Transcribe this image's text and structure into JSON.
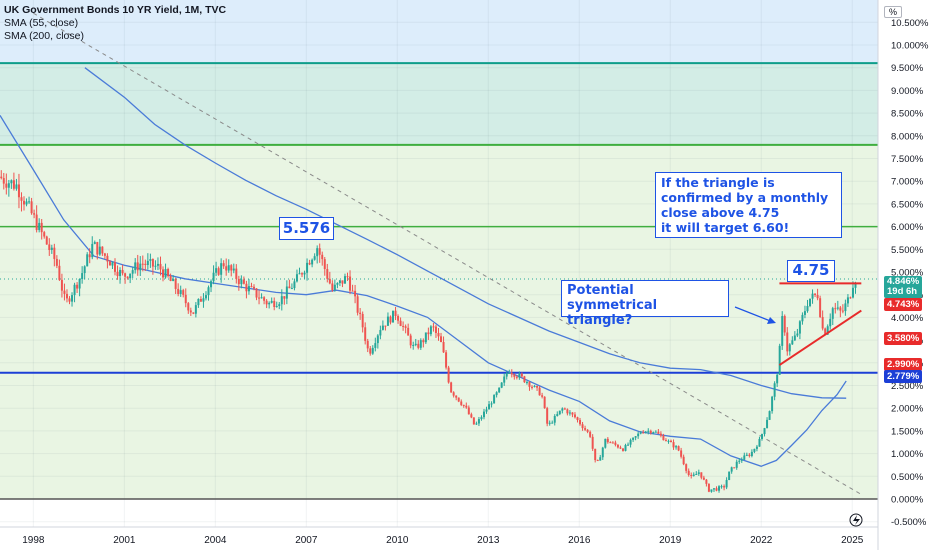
{
  "header": {
    "title": "UK Government Bonds 10 YR Yield, 1M, TVC",
    "indicators": [
      "SMA (55, close)",
      "SMA (200, close)"
    ]
  },
  "axis": {
    "unit": "%"
  },
  "annotations": {
    "peak_label": "5.576",
    "resistance_label": "4.75",
    "triangle_note": "Potential symmetrical triangle?",
    "target_note_lines": [
      "If the triangle is",
      "confirmed by a monthly",
      "close above 4.75",
      "it will target 6.60!"
    ]
  },
  "price_labels": {
    "last_price": "4.846%",
    "countdown": "19d 6h",
    "level_4743": "4.743%",
    "level_3580": "3.580%",
    "level_2990": "2.990%",
    "level_2779": "2.779%"
  },
  "colors": {
    "candle_up": "#26a69a",
    "candle_down": "#ef5350",
    "sma": "#4a7bd8",
    "resistance": "#e82b2b",
    "support": "#1c3fd6",
    "band_line": "#3fae3f",
    "top_band": "#0e9d8a"
  },
  "chart_data": {
    "type": "candlestick",
    "title": "UK Government Bonds 10 YR Yield, 1M, TVC",
    "x_ticks": [
      "1998",
      "2001",
      "2004",
      "2007",
      "2010",
      "2013",
      "2016",
      "2019",
      "2022",
      "2025"
    ],
    "y_ticks": [
      "10.500%",
      "10.000%",
      "9.500%",
      "9.000%",
      "8.500%",
      "8.000%",
      "7.500%",
      "7.000%",
      "6.500%",
      "6.000%",
      "5.500%",
      "5.000%",
      "4.500%",
      "4.000%",
      "3.500%",
      "3.000%",
      "2.500%",
      "2.000%",
      "1.500%",
      "1.000%",
      "0.500%",
      "0.000%",
      "-0.500%"
    ],
    "ylim": [
      -0.5,
      10.8
    ],
    "horizontal_levels": [
      9.6,
      7.8,
      6.0,
      2.78,
      0.0
    ],
    "trendline_resistance": {
      "from": [
        2022.6,
        4.75
      ],
      "to": [
        2025.3,
        4.75
      ]
    },
    "trendline_support": {
      "from": [
        2022.6,
        2.95
      ],
      "to": [
        2025.3,
        4.15
      ]
    },
    "dashed_trendline": {
      "from": [
        1998.0,
        10.7
      ],
      "to": [
        2025.3,
        0.1
      ]
    },
    "sma55": [
      [
        1996.9,
        8.45
      ],
      [
        1998,
        7.25
      ],
      [
        1999,
        6.15
      ],
      [
        2000,
        5.35
      ],
      [
        2001,
        5.15
      ],
      [
        2002,
        5.0
      ],
      [
        2003,
        4.85
      ],
      [
        2004,
        4.75
      ],
      [
        2005,
        4.65
      ],
      [
        2006,
        4.55
      ],
      [
        2007,
        4.5
      ],
      [
        2008,
        4.6
      ],
      [
        2009,
        4.48
      ],
      [
        2010,
        4.25
      ],
      [
        2011,
        4.0
      ],
      [
        2012,
        3.5
      ],
      [
        2013,
        3.0
      ],
      [
        2014,
        2.7
      ],
      [
        2015,
        2.4
      ],
      [
        2016,
        2.15
      ],
      [
        2017,
        1.72
      ],
      [
        2018,
        1.48
      ],
      [
        2019,
        1.38
      ],
      [
        2020,
        1.32
      ],
      [
        2021,
        0.95
      ],
      [
        2022,
        0.72
      ],
      [
        2022.5,
        0.85
      ],
      [
        2023,
        1.18
      ],
      [
        2023.5,
        1.52
      ],
      [
        2024,
        1.95
      ],
      [
        2024.5,
        2.3
      ],
      [
        2024.8,
        2.6
      ]
    ],
    "sma200": [
      [
        1999.7,
        9.5
      ],
      [
        2001,
        8.85
      ],
      [
        2002,
        8.25
      ],
      [
        2003,
        7.8
      ],
      [
        2004,
        7.4
      ],
      [
        2005,
        7.02
      ],
      [
        2006,
        6.68
      ],
      [
        2007,
        6.38
      ],
      [
        2008,
        6.05
      ],
      [
        2009,
        5.72
      ],
      [
        2010,
        5.38
      ],
      [
        2011,
        5.02
      ],
      [
        2012,
        4.66
      ],
      [
        2013,
        4.3
      ],
      [
        2014,
        4.0
      ],
      [
        2015,
        3.7
      ],
      [
        2016,
        3.45
      ],
      [
        2017,
        3.2
      ],
      [
        2018,
        3.0
      ],
      [
        2019,
        2.88
      ],
      [
        2020,
        2.85
      ],
      [
        2021,
        2.72
      ],
      [
        2022,
        2.5
      ],
      [
        2023,
        2.32
      ],
      [
        2024,
        2.23
      ],
      [
        2024.8,
        2.22
      ]
    ],
    "price_anchors": [
      [
        1996.9,
        7.1
      ],
      [
        1997.5,
        6.9
      ],
      [
        1998.2,
        6.0
      ],
      [
        1998.8,
        5.2
      ],
      [
        1999.1,
        4.3
      ],
      [
        1999.6,
        4.9
      ],
      [
        2000.0,
        5.6
      ],
      [
        2000.5,
        5.3
      ],
      [
        2001.0,
        4.9
      ],
      [
        2001.6,
        5.2
      ],
      [
        2002.2,
        5.1
      ],
      [
        2002.8,
        4.6
      ],
      [
        2003.3,
        4.1
      ],
      [
        2003.9,
        4.8
      ],
      [
        2004.3,
        5.2
      ],
      [
        2005.0,
        4.7
      ],
      [
        2005.8,
        4.3
      ],
      [
        2006.2,
        4.4
      ],
      [
        2006.7,
        4.8
      ],
      [
        2007.4,
        5.55
      ],
      [
        2007.9,
        4.6
      ],
      [
        2008.4,
        4.9
      ],
      [
        2008.9,
        3.8
      ],
      [
        2009.1,
        3.2
      ],
      [
        2009.5,
        3.8
      ],
      [
        2010.0,
        4.1
      ],
      [
        2010.6,
        3.3
      ],
      [
        2010.9,
        3.5
      ],
      [
        2011.2,
        3.8
      ],
      [
        2011.5,
        3.4
      ],
      [
        2011.8,
        2.4
      ],
      [
        2012.3,
        2.0
      ],
      [
        2012.6,
        1.6
      ],
      [
        2013.0,
        2.0
      ],
      [
        2013.4,
        2.4
      ],
      [
        2013.7,
        2.85
      ],
      [
        2014.3,
        2.6
      ],
      [
        2014.8,
        2.3
      ],
      [
        2015.0,
        1.6
      ],
      [
        2015.5,
        2.0
      ],
      [
        2015.9,
        1.8
      ],
      [
        2016.4,
        1.4
      ],
      [
        2016.6,
        0.7
      ],
      [
        2016.9,
        1.3
      ],
      [
        2017.5,
        1.1
      ],
      [
        2018.1,
        1.5
      ],
      [
        2018.5,
        1.5
      ],
      [
        2018.9,
        1.3
      ],
      [
        2019.3,
        1.1
      ],
      [
        2019.7,
        0.45
      ],
      [
        2020.0,
        0.6
      ],
      [
        2020.3,
        0.2
      ],
      [
        2020.8,
        0.25
      ],
      [
        2021.0,
        0.6
      ],
      [
        2021.3,
        0.85
      ],
      [
        2021.7,
        1.0
      ],
      [
        2022.0,
        1.3
      ],
      [
        2022.3,
        1.9
      ],
      [
        2022.6,
        2.9
      ],
      [
        2022.75,
        4.1
      ],
      [
        2022.9,
        3.3
      ],
      [
        2023.2,
        3.6
      ],
      [
        2023.6,
        4.4
      ],
      [
        2023.9,
        4.5
      ],
      [
        2024.1,
        3.6
      ],
      [
        2024.4,
        4.2
      ],
      [
        2024.7,
        4.1
      ],
      [
        2024.95,
        4.45
      ],
      [
        2025.1,
        4.85
      ]
    ]
  }
}
